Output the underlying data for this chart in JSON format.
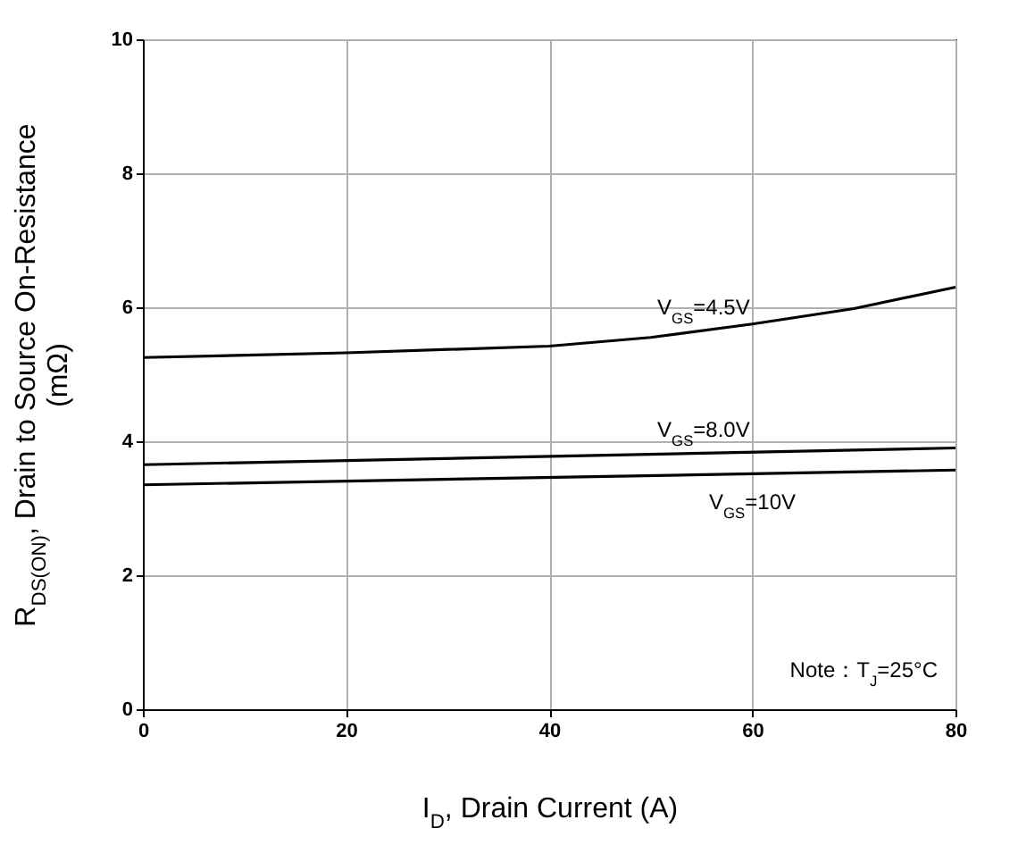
{
  "chart_data": {
    "type": "line",
    "xlabel": "I$_{D}$, Drain Current (A)",
    "ylabel": "R$_{DS(ON)}$, Drain to Source On-Resistance (mΩ)",
    "xlim": [
      0,
      80
    ],
    "xticks": [
      0,
      20,
      40,
      60,
      80
    ],
    "ylim": [
      0,
      10
    ],
    "yticks": [
      0,
      2,
      4,
      6,
      8,
      10
    ],
    "grid": true,
    "marker": "none",
    "line_style": "solid",
    "series": [
      {
        "name": "V$_{GS}$=4.5V",
        "color": "#000000",
        "x": [
          0,
          20,
          40,
          50,
          60,
          70,
          80
        ],
        "values": [
          5.25,
          5.32,
          5.42,
          5.55,
          5.75,
          5.98,
          6.3
        ]
      },
      {
        "name": "V$_{GS}$=8.0V",
        "color": "#000000",
        "x": [
          0,
          80
        ],
        "values": [
          3.65,
          3.9
        ]
      },
      {
        "name": "V$_{GS}$=10V",
        "color": "#000000",
        "x": [
          0,
          80
        ],
        "values": [
          3.35,
          3.57
        ]
      }
    ],
    "annotations": [
      "Note：T$_{J}$=25°C"
    ]
  }
}
